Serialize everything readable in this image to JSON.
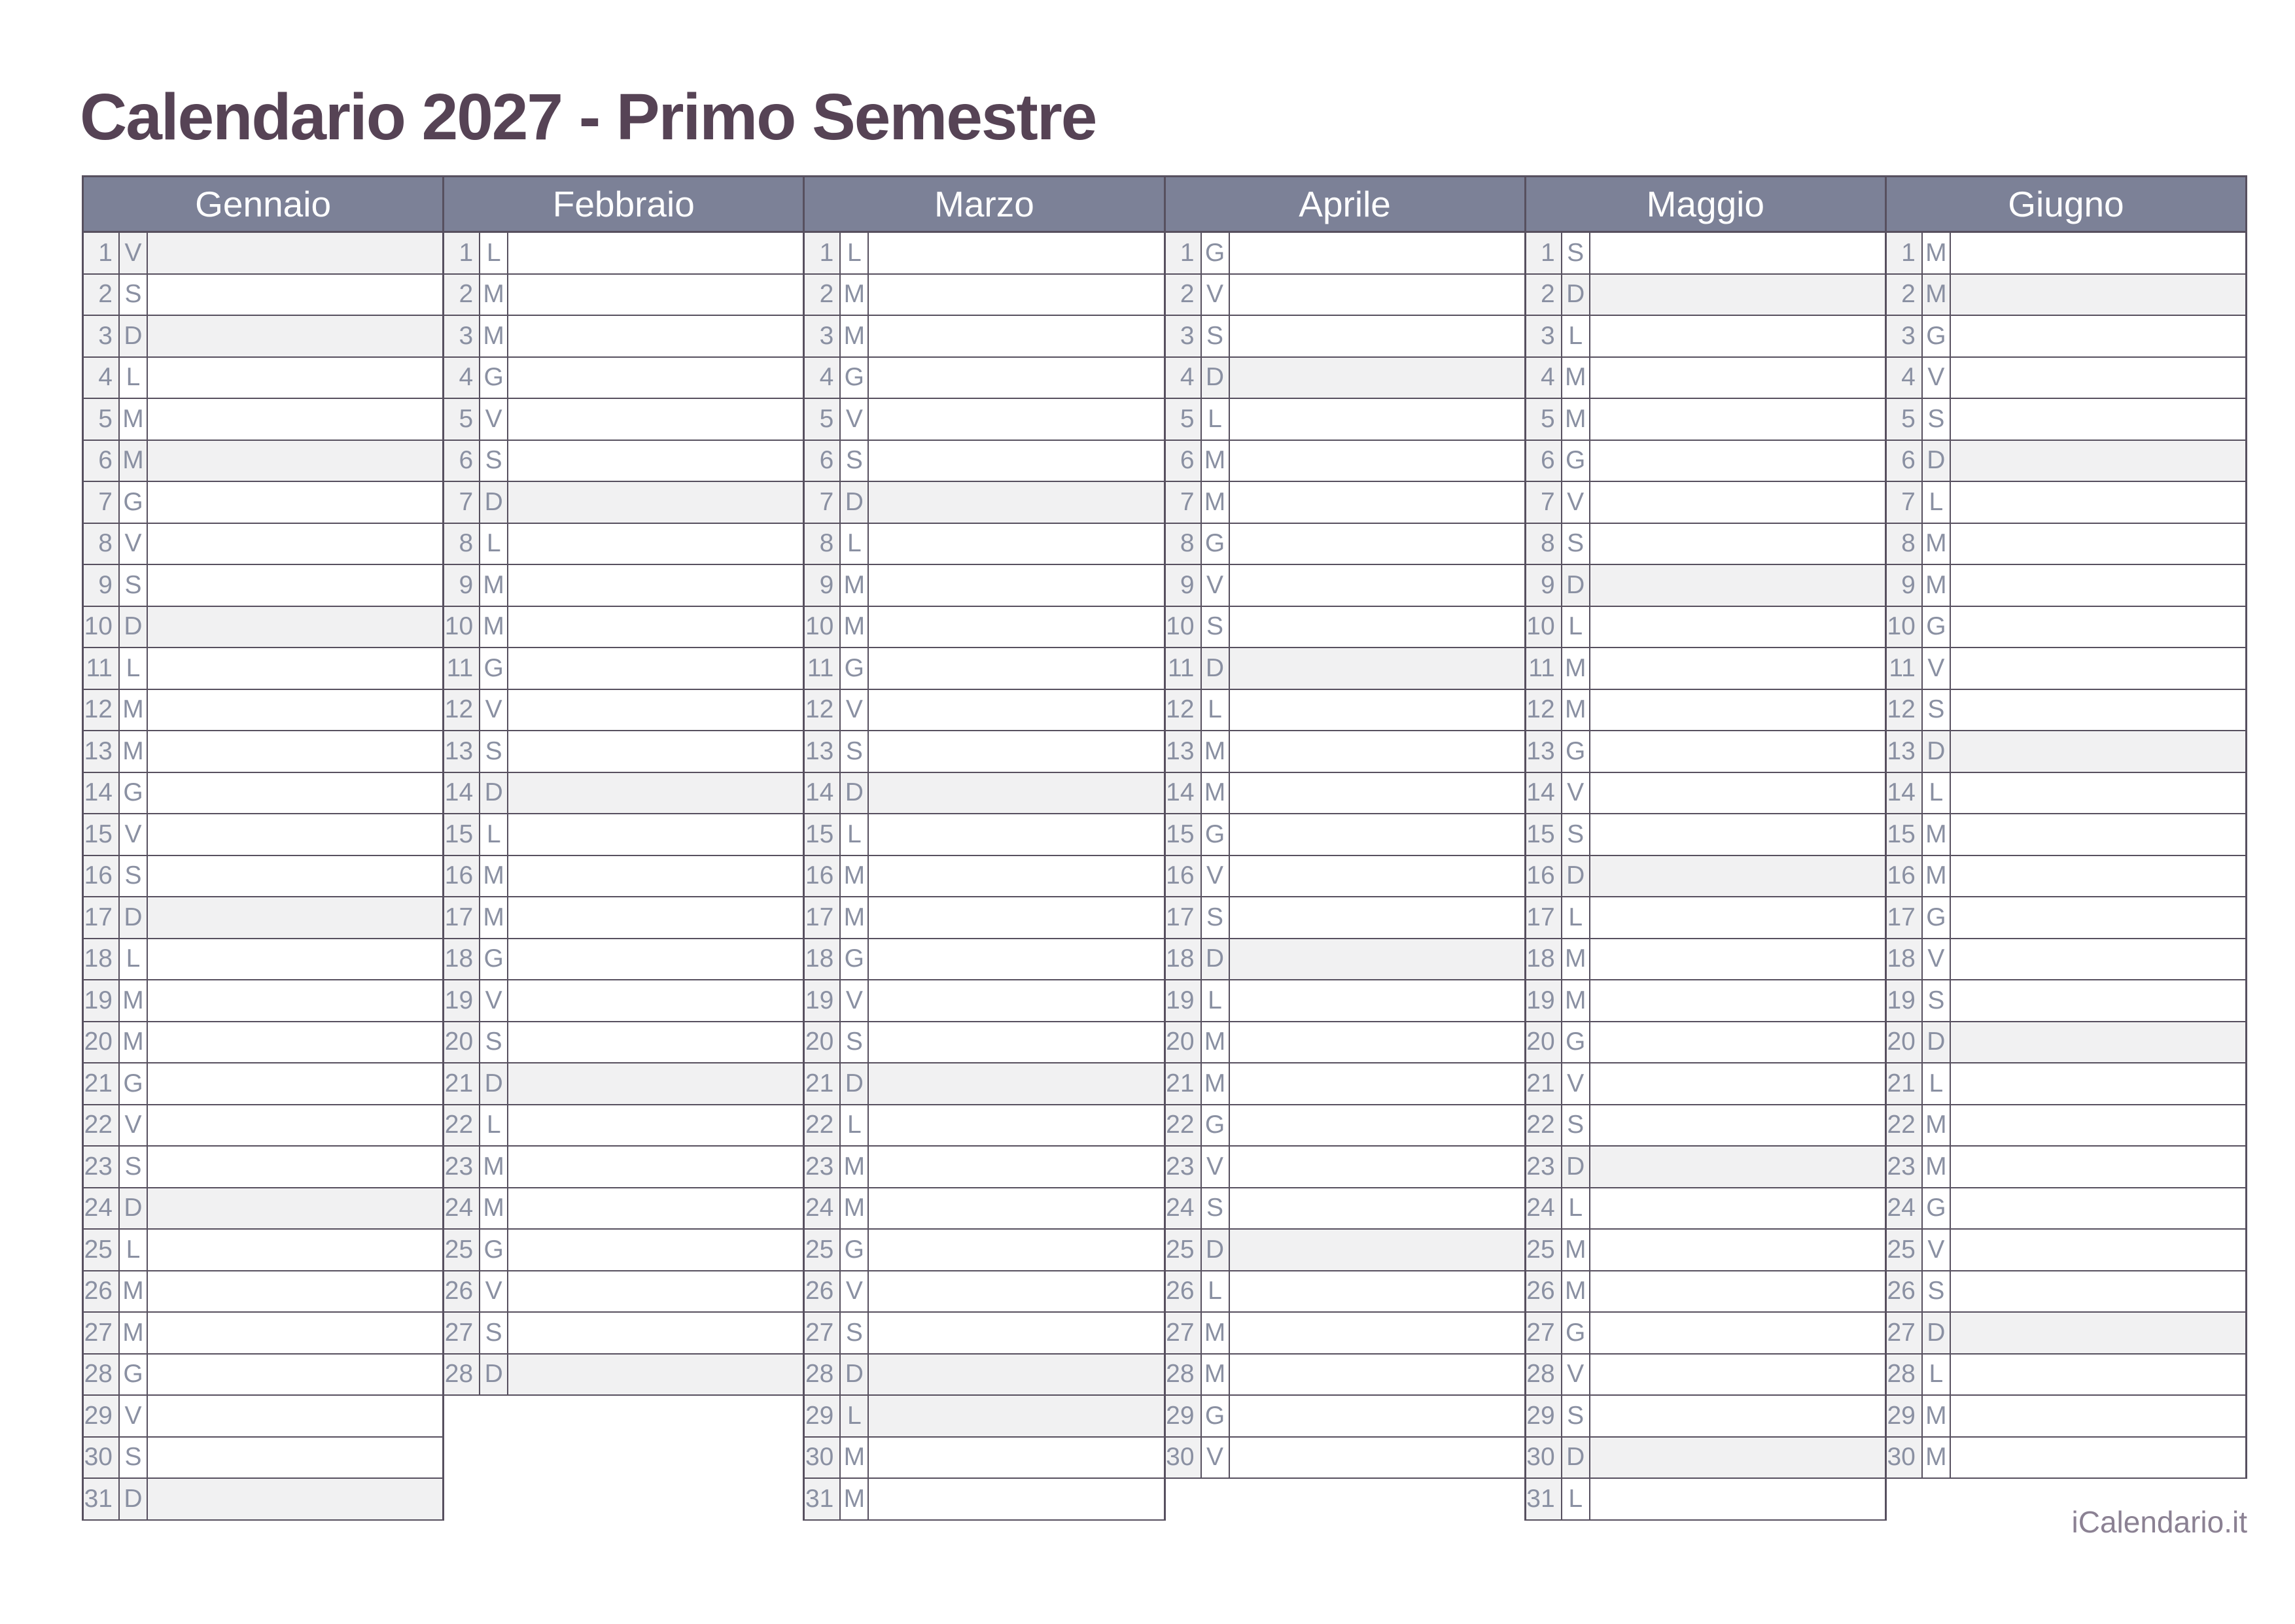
{
  "page": {
    "title": "Calendario 2027 - Primo Semestre",
    "footer_link": "iCalendario.it"
  },
  "colors": {
    "header_bg": "#7c8197",
    "header_text": "#ffffff",
    "grid_border": "#57505f",
    "shaded_row": "#f1f1f2",
    "day_text": "#8a90a2",
    "title_text": "#564355",
    "footer_text": "#8b8193"
  },
  "calendar": {
    "months": [
      {
        "name": "Gennaio",
        "days": [
          {
            "n": 1,
            "w": "V",
            "h": 1
          },
          {
            "n": 2,
            "w": "S"
          },
          {
            "n": 3,
            "w": "D",
            "h": 1
          },
          {
            "n": 4,
            "w": "L"
          },
          {
            "n": 5,
            "w": "M"
          },
          {
            "n": 6,
            "w": "M",
            "h": 1
          },
          {
            "n": 7,
            "w": "G"
          },
          {
            "n": 8,
            "w": "V"
          },
          {
            "n": 9,
            "w": "S"
          },
          {
            "n": 10,
            "w": "D",
            "h": 1
          },
          {
            "n": 11,
            "w": "L"
          },
          {
            "n": 12,
            "w": "M"
          },
          {
            "n": 13,
            "w": "M"
          },
          {
            "n": 14,
            "w": "G"
          },
          {
            "n": 15,
            "w": "V"
          },
          {
            "n": 16,
            "w": "S"
          },
          {
            "n": 17,
            "w": "D",
            "h": 1
          },
          {
            "n": 18,
            "w": "L"
          },
          {
            "n": 19,
            "w": "M"
          },
          {
            "n": 20,
            "w": "M"
          },
          {
            "n": 21,
            "w": "G"
          },
          {
            "n": 22,
            "w": "V"
          },
          {
            "n": 23,
            "w": "S"
          },
          {
            "n": 24,
            "w": "D",
            "h": 1
          },
          {
            "n": 25,
            "w": "L"
          },
          {
            "n": 26,
            "w": "M"
          },
          {
            "n": 27,
            "w": "M"
          },
          {
            "n": 28,
            "w": "G"
          },
          {
            "n": 29,
            "w": "V"
          },
          {
            "n": 30,
            "w": "S"
          },
          {
            "n": 31,
            "w": "D",
            "h": 1
          }
        ]
      },
      {
        "name": "Febbraio",
        "days": [
          {
            "n": 1,
            "w": "L"
          },
          {
            "n": 2,
            "w": "M"
          },
          {
            "n": 3,
            "w": "M"
          },
          {
            "n": 4,
            "w": "G"
          },
          {
            "n": 5,
            "w": "V"
          },
          {
            "n": 6,
            "w": "S"
          },
          {
            "n": 7,
            "w": "D",
            "h": 1
          },
          {
            "n": 8,
            "w": "L"
          },
          {
            "n": 9,
            "w": "M"
          },
          {
            "n": 10,
            "w": "M"
          },
          {
            "n": 11,
            "w": "G"
          },
          {
            "n": 12,
            "w": "V"
          },
          {
            "n": 13,
            "w": "S"
          },
          {
            "n": 14,
            "w": "D",
            "h": 1
          },
          {
            "n": 15,
            "w": "L"
          },
          {
            "n": 16,
            "w": "M"
          },
          {
            "n": 17,
            "w": "M"
          },
          {
            "n": 18,
            "w": "G"
          },
          {
            "n": 19,
            "w": "V"
          },
          {
            "n": 20,
            "w": "S"
          },
          {
            "n": 21,
            "w": "D",
            "h": 1
          },
          {
            "n": 22,
            "w": "L"
          },
          {
            "n": 23,
            "w": "M"
          },
          {
            "n": 24,
            "w": "M"
          },
          {
            "n": 25,
            "w": "G"
          },
          {
            "n": 26,
            "w": "V"
          },
          {
            "n": 27,
            "w": "S"
          },
          {
            "n": 28,
            "w": "D",
            "h": 1
          }
        ]
      },
      {
        "name": "Marzo",
        "days": [
          {
            "n": 1,
            "w": "L"
          },
          {
            "n": 2,
            "w": "M"
          },
          {
            "n": 3,
            "w": "M"
          },
          {
            "n": 4,
            "w": "G"
          },
          {
            "n": 5,
            "w": "V"
          },
          {
            "n": 6,
            "w": "S"
          },
          {
            "n": 7,
            "w": "D",
            "h": 1
          },
          {
            "n": 8,
            "w": "L"
          },
          {
            "n": 9,
            "w": "M"
          },
          {
            "n": 10,
            "w": "M"
          },
          {
            "n": 11,
            "w": "G"
          },
          {
            "n": 12,
            "w": "V"
          },
          {
            "n": 13,
            "w": "S"
          },
          {
            "n": 14,
            "w": "D",
            "h": 1
          },
          {
            "n": 15,
            "w": "L"
          },
          {
            "n": 16,
            "w": "M"
          },
          {
            "n": 17,
            "w": "M"
          },
          {
            "n": 18,
            "w": "G"
          },
          {
            "n": 19,
            "w": "V"
          },
          {
            "n": 20,
            "w": "S"
          },
          {
            "n": 21,
            "w": "D",
            "h": 1
          },
          {
            "n": 22,
            "w": "L"
          },
          {
            "n": 23,
            "w": "M"
          },
          {
            "n": 24,
            "w": "M"
          },
          {
            "n": 25,
            "w": "G"
          },
          {
            "n": 26,
            "w": "V"
          },
          {
            "n": 27,
            "w": "S"
          },
          {
            "n": 28,
            "w": "D",
            "h": 1
          },
          {
            "n": 29,
            "w": "L",
            "h": 1
          },
          {
            "n": 30,
            "w": "M"
          },
          {
            "n": 31,
            "w": "M"
          }
        ]
      },
      {
        "name": "Aprile",
        "days": [
          {
            "n": 1,
            "w": "G"
          },
          {
            "n": 2,
            "w": "V"
          },
          {
            "n": 3,
            "w": "S"
          },
          {
            "n": 4,
            "w": "D",
            "h": 1
          },
          {
            "n": 5,
            "w": "L"
          },
          {
            "n": 6,
            "w": "M"
          },
          {
            "n": 7,
            "w": "M"
          },
          {
            "n": 8,
            "w": "G"
          },
          {
            "n": 9,
            "w": "V"
          },
          {
            "n": 10,
            "w": "S"
          },
          {
            "n": 11,
            "w": "D",
            "h": 1
          },
          {
            "n": 12,
            "w": "L"
          },
          {
            "n": 13,
            "w": "M"
          },
          {
            "n": 14,
            "w": "M"
          },
          {
            "n": 15,
            "w": "G"
          },
          {
            "n": 16,
            "w": "V"
          },
          {
            "n": 17,
            "w": "S"
          },
          {
            "n": 18,
            "w": "D",
            "h": 1
          },
          {
            "n": 19,
            "w": "L"
          },
          {
            "n": 20,
            "w": "M"
          },
          {
            "n": 21,
            "w": "M"
          },
          {
            "n": 22,
            "w": "G"
          },
          {
            "n": 23,
            "w": "V"
          },
          {
            "n": 24,
            "w": "S"
          },
          {
            "n": 25,
            "w": "D",
            "h": 1
          },
          {
            "n": 26,
            "w": "L"
          },
          {
            "n": 27,
            "w": "M"
          },
          {
            "n": 28,
            "w": "M"
          },
          {
            "n": 29,
            "w": "G"
          },
          {
            "n": 30,
            "w": "V"
          }
        ]
      },
      {
        "name": "Maggio",
        "days": [
          {
            "n": 1,
            "w": "S"
          },
          {
            "n": 2,
            "w": "D",
            "h": 1
          },
          {
            "n": 3,
            "w": "L"
          },
          {
            "n": 4,
            "w": "M"
          },
          {
            "n": 5,
            "w": "M"
          },
          {
            "n": 6,
            "w": "G"
          },
          {
            "n": 7,
            "w": "V"
          },
          {
            "n": 8,
            "w": "S"
          },
          {
            "n": 9,
            "w": "D",
            "h": 1
          },
          {
            "n": 10,
            "w": "L"
          },
          {
            "n": 11,
            "w": "M"
          },
          {
            "n": 12,
            "w": "M"
          },
          {
            "n": 13,
            "w": "G"
          },
          {
            "n": 14,
            "w": "V"
          },
          {
            "n": 15,
            "w": "S"
          },
          {
            "n": 16,
            "w": "D",
            "h": 1
          },
          {
            "n": 17,
            "w": "L"
          },
          {
            "n": 18,
            "w": "M"
          },
          {
            "n": 19,
            "w": "M"
          },
          {
            "n": 20,
            "w": "G"
          },
          {
            "n": 21,
            "w": "V"
          },
          {
            "n": 22,
            "w": "S"
          },
          {
            "n": 23,
            "w": "D",
            "h": 1
          },
          {
            "n": 24,
            "w": "L"
          },
          {
            "n": 25,
            "w": "M"
          },
          {
            "n": 26,
            "w": "M"
          },
          {
            "n": 27,
            "w": "G"
          },
          {
            "n": 28,
            "w": "V"
          },
          {
            "n": 29,
            "w": "S"
          },
          {
            "n": 30,
            "w": "D",
            "h": 1
          },
          {
            "n": 31,
            "w": "L"
          }
        ]
      },
      {
        "name": "Giugno",
        "days": [
          {
            "n": 1,
            "w": "M"
          },
          {
            "n": 2,
            "w": "M",
            "h": 1
          },
          {
            "n": 3,
            "w": "G"
          },
          {
            "n": 4,
            "w": "V"
          },
          {
            "n": 5,
            "w": "S"
          },
          {
            "n": 6,
            "w": "D",
            "h": 1
          },
          {
            "n": 7,
            "w": "L"
          },
          {
            "n": 8,
            "w": "M"
          },
          {
            "n": 9,
            "w": "M"
          },
          {
            "n": 10,
            "w": "G"
          },
          {
            "n": 11,
            "w": "V"
          },
          {
            "n": 12,
            "w": "S"
          },
          {
            "n": 13,
            "w": "D",
            "h": 1
          },
          {
            "n": 14,
            "w": "L"
          },
          {
            "n": 15,
            "w": "M"
          },
          {
            "n": 16,
            "w": "M"
          },
          {
            "n": 17,
            "w": "G"
          },
          {
            "n": 18,
            "w": "V"
          },
          {
            "n": 19,
            "w": "S"
          },
          {
            "n": 20,
            "w": "D",
            "h": 1
          },
          {
            "n": 21,
            "w": "L"
          },
          {
            "n": 22,
            "w": "M"
          },
          {
            "n": 23,
            "w": "M"
          },
          {
            "n": 24,
            "w": "G"
          },
          {
            "n": 25,
            "w": "V"
          },
          {
            "n": 26,
            "w": "S"
          },
          {
            "n": 27,
            "w": "D",
            "h": 1
          },
          {
            "n": 28,
            "w": "L"
          },
          {
            "n": 29,
            "w": "M"
          },
          {
            "n": 30,
            "w": "M"
          }
        ]
      }
    ]
  }
}
